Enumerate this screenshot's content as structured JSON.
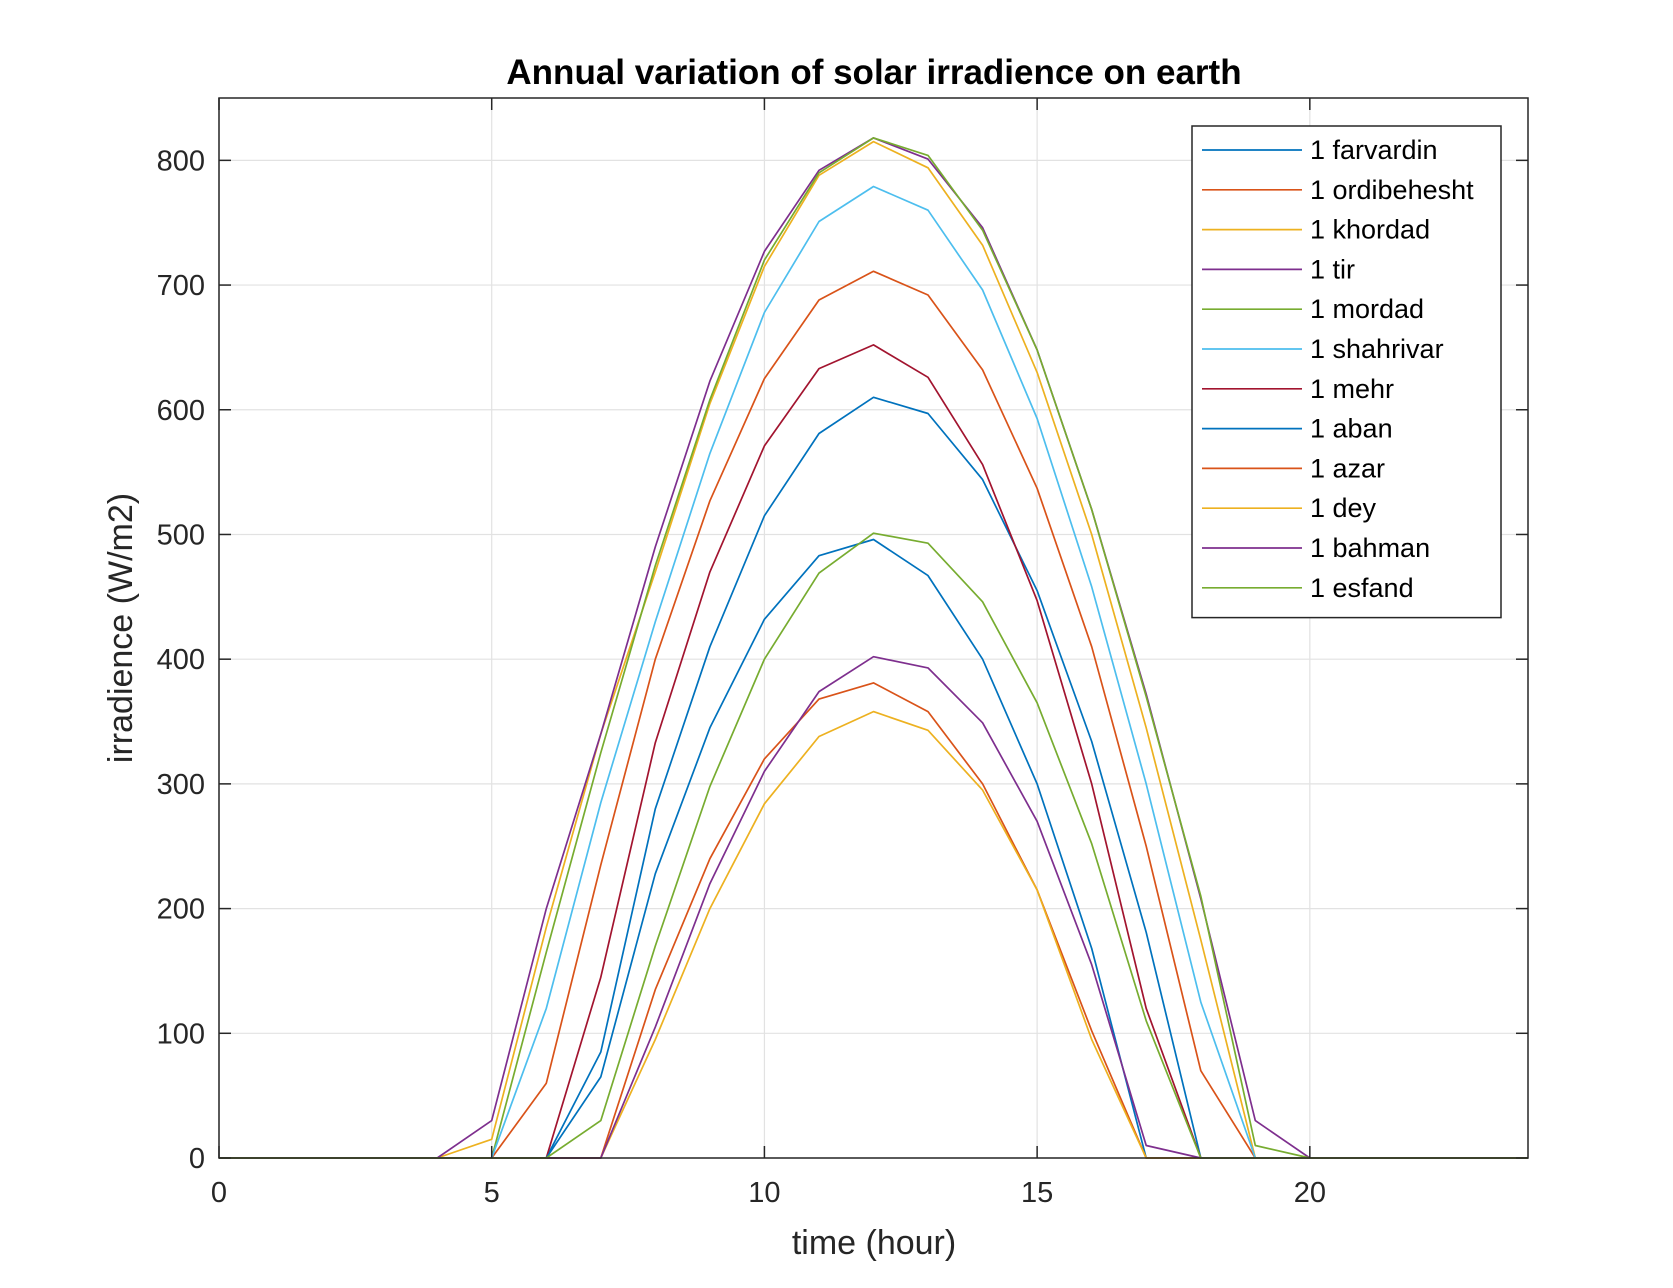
{
  "chart_data": {
    "type": "line",
    "title": "Annual variation of solar irradience on earth",
    "xlabel": "time (hour)",
    "ylabel": "irradience (W/m2)",
    "xlim": [
      0,
      24
    ],
    "ylim": [
      0,
      850
    ],
    "xticks": [
      0,
      5,
      10,
      15,
      20
    ],
    "yticks": [
      0,
      100,
      200,
      300,
      400,
      500,
      600,
      700,
      800
    ],
    "grid": true,
    "legend_position": "top-right",
    "x": [
      0,
      1,
      2,
      3,
      4,
      5,
      6,
      7,
      8,
      9,
      10,
      11,
      12,
      13,
      14,
      15,
      16,
      17,
      18,
      19,
      20,
      21,
      22,
      23,
      24
    ],
    "series": [
      {
        "name": "1 farvardin",
        "color": "#0072BD",
        "values": [
          0,
          0,
          0,
          0,
          0,
          0,
          0,
          85,
          280,
          410,
          515,
          581,
          610,
          597,
          544,
          455,
          334,
          181,
          0,
          0,
          0,
          0,
          0,
          0,
          0
        ]
      },
      {
        "name": "1 ordibehesht",
        "color": "#D95319",
        "values": [
          0,
          0,
          0,
          0,
          0,
          0,
          60,
          235,
          400,
          527,
          625,
          688,
          711,
          692,
          632,
          537,
          410,
          250,
          70,
          0,
          0,
          0,
          0,
          0,
          0
        ]
      },
      {
        "name": "1 khordad",
        "color": "#EDB120",
        "values": [
          0,
          0,
          0,
          0,
          0,
          15,
          185,
          340,
          470,
          605,
          715,
          788,
          815,
          794,
          732,
          630,
          500,
          345,
          175,
          0,
          0,
          0,
          0,
          0,
          0
        ]
      },
      {
        "name": "1 tir",
        "color": "#7E2F8E",
        "values": [
          0,
          0,
          0,
          0,
          0,
          30,
          200,
          340,
          490,
          623,
          727,
          792,
          818,
          801,
          746,
          648,
          520,
          372,
          208,
          30,
          0,
          0,
          0,
          0,
          0
        ]
      },
      {
        "name": "1 mordad",
        "color": "#77AC30",
        "values": [
          0,
          0,
          0,
          0,
          0,
          0,
          165,
          325,
          475,
          608,
          720,
          790,
          818,
          804,
          744,
          648,
          520,
          370,
          210,
          10,
          0,
          0,
          0,
          0,
          0
        ]
      },
      {
        "name": "1 shahrivar",
        "color": "#4DBEEE",
        "values": [
          0,
          0,
          0,
          0,
          0,
          0,
          120,
          285,
          430,
          565,
          678,
          751,
          779,
          760,
          696,
          593,
          458,
          300,
          125,
          0,
          0,
          0,
          0,
          0,
          0
        ]
      },
      {
        "name": "1 mehr",
        "color": "#A2142F",
        "values": [
          0,
          0,
          0,
          0,
          0,
          0,
          0,
          145,
          333,
          470,
          571,
          633,
          652,
          626,
          556,
          447,
          300,
          120,
          0,
          0,
          0,
          0,
          0,
          0,
          0
        ]
      },
      {
        "name": "1 aban",
        "color": "#0072BD",
        "values": [
          0,
          0,
          0,
          0,
          0,
          0,
          0,
          65,
          228,
          345,
          432,
          483,
          496,
          467,
          400,
          300,
          168,
          0,
          0,
          0,
          0,
          0,
          0,
          0,
          0
        ]
      },
      {
        "name": "1 azar",
        "color": "#D95319",
        "values": [
          0,
          0,
          0,
          0,
          0,
          0,
          0,
          0,
          135,
          240,
          320,
          368,
          381,
          358,
          300,
          215,
          102,
          0,
          0,
          0,
          0,
          0,
          0,
          0,
          0
        ]
      },
      {
        "name": "1 dey",
        "color": "#EDB120",
        "values": [
          0,
          0,
          0,
          0,
          0,
          0,
          0,
          0,
          95,
          200,
          284,
          338,
          358,
          343,
          295,
          215,
          95,
          0,
          0,
          0,
          0,
          0,
          0,
          0,
          0
        ]
      },
      {
        "name": "1 bahman",
        "color": "#7E2F8E",
        "values": [
          0,
          0,
          0,
          0,
          0,
          0,
          0,
          0,
          105,
          220,
          310,
          374,
          402,
          393,
          349,
          270,
          155,
          10,
          0,
          0,
          0,
          0,
          0,
          0,
          0
        ]
      },
      {
        "name": "1 esfand",
        "color": "#77AC30",
        "values": [
          0,
          0,
          0,
          0,
          0,
          0,
          0,
          30,
          170,
          298,
          400,
          469,
          501,
          493,
          446,
          365,
          252,
          110,
          0,
          0,
          0,
          0,
          0,
          0,
          0
        ]
      }
    ]
  }
}
